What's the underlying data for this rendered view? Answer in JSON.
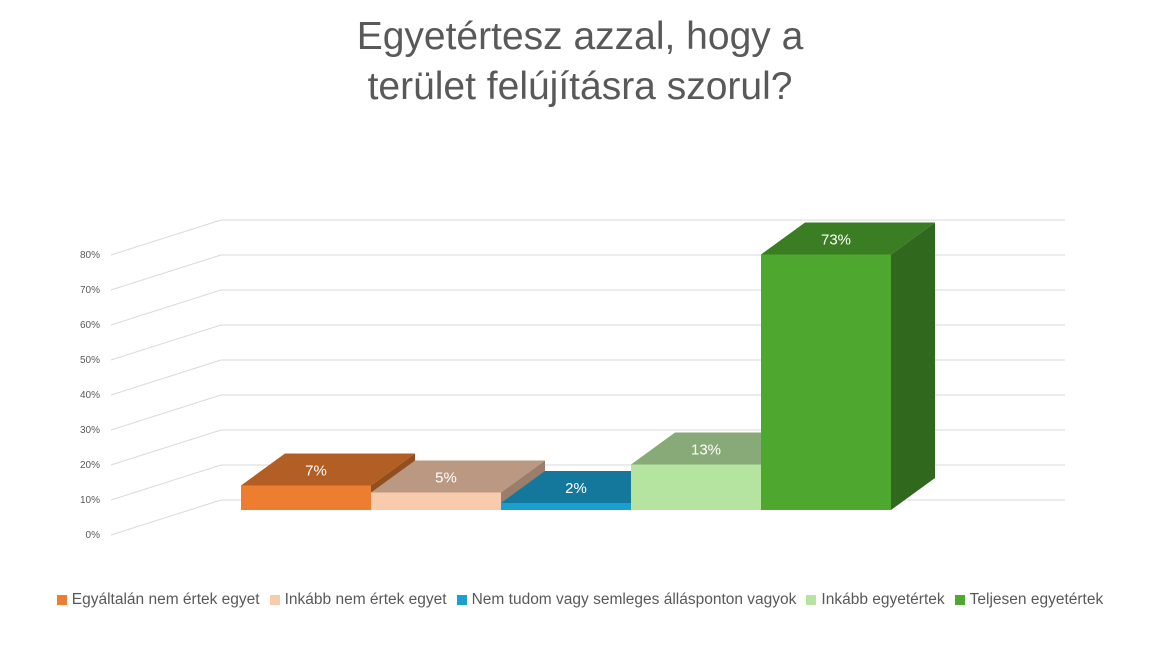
{
  "chart_data": {
    "type": "bar",
    "title_lines": [
      "Egyetértesz azzal, hogy a",
      "terület felújításra szorul?"
    ],
    "categories": [
      "Egyáltalán nem értek egyet",
      "Inkább nem értek egyet",
      "Nem tudom vagy semleges állásponton vagyok",
      "Inkább egyetértek",
      "Teljesen egyetértek"
    ],
    "values": [
      7,
      5,
      2,
      13,
      73
    ],
    "data_labels": [
      "7%",
      "5%",
      "2%",
      "13%",
      "73%"
    ],
    "colors": [
      "#ED7D31",
      "#F8CBAD",
      "#1AA0D0",
      "#B5E3A0",
      "#4EA72E"
    ],
    "y_ticks": [
      "0%",
      "10%",
      "20%",
      "30%",
      "40%",
      "50%",
      "60%",
      "70%",
      "80%"
    ],
    "ylim": [
      0,
      80
    ],
    "three_d": true,
    "grid": true,
    "legend_position": "bottom"
  }
}
